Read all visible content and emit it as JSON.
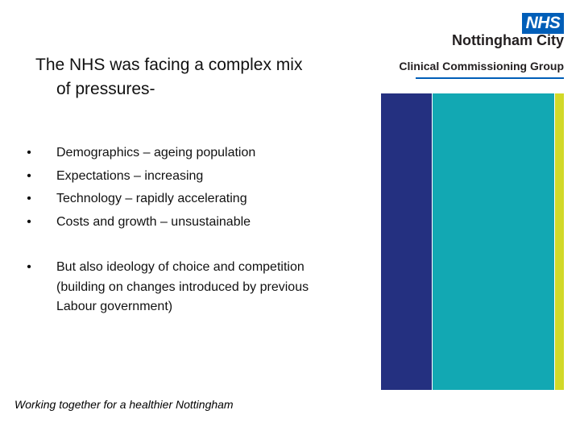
{
  "slide": {
    "title_line1": "The NHS was facing a complex mix",
    "title_line2": "of pressures-",
    "bullet_symbol": "•",
    "bullets": [
      "Demographics – ageing population",
      "Expectations – increasing",
      "Technology – rapidly accelerating",
      "Costs and growth – unsustainable"
    ],
    "extra_bullet": [
      "But also ideology of choice and competition",
      "(building on changes introduced by previous",
      "Labour government)"
    ],
    "footer": "Working together for a healthier Nottingham"
  },
  "logo": {
    "badge": "NHS",
    "org": "Nottingham City",
    "sub": "Clinical Commissioning Group"
  },
  "colors": {
    "nhs_blue": "#005eb8",
    "bar_navy": "#243080",
    "bar_teal": "#12a8b3",
    "bar_lime": "#d2d928"
  }
}
